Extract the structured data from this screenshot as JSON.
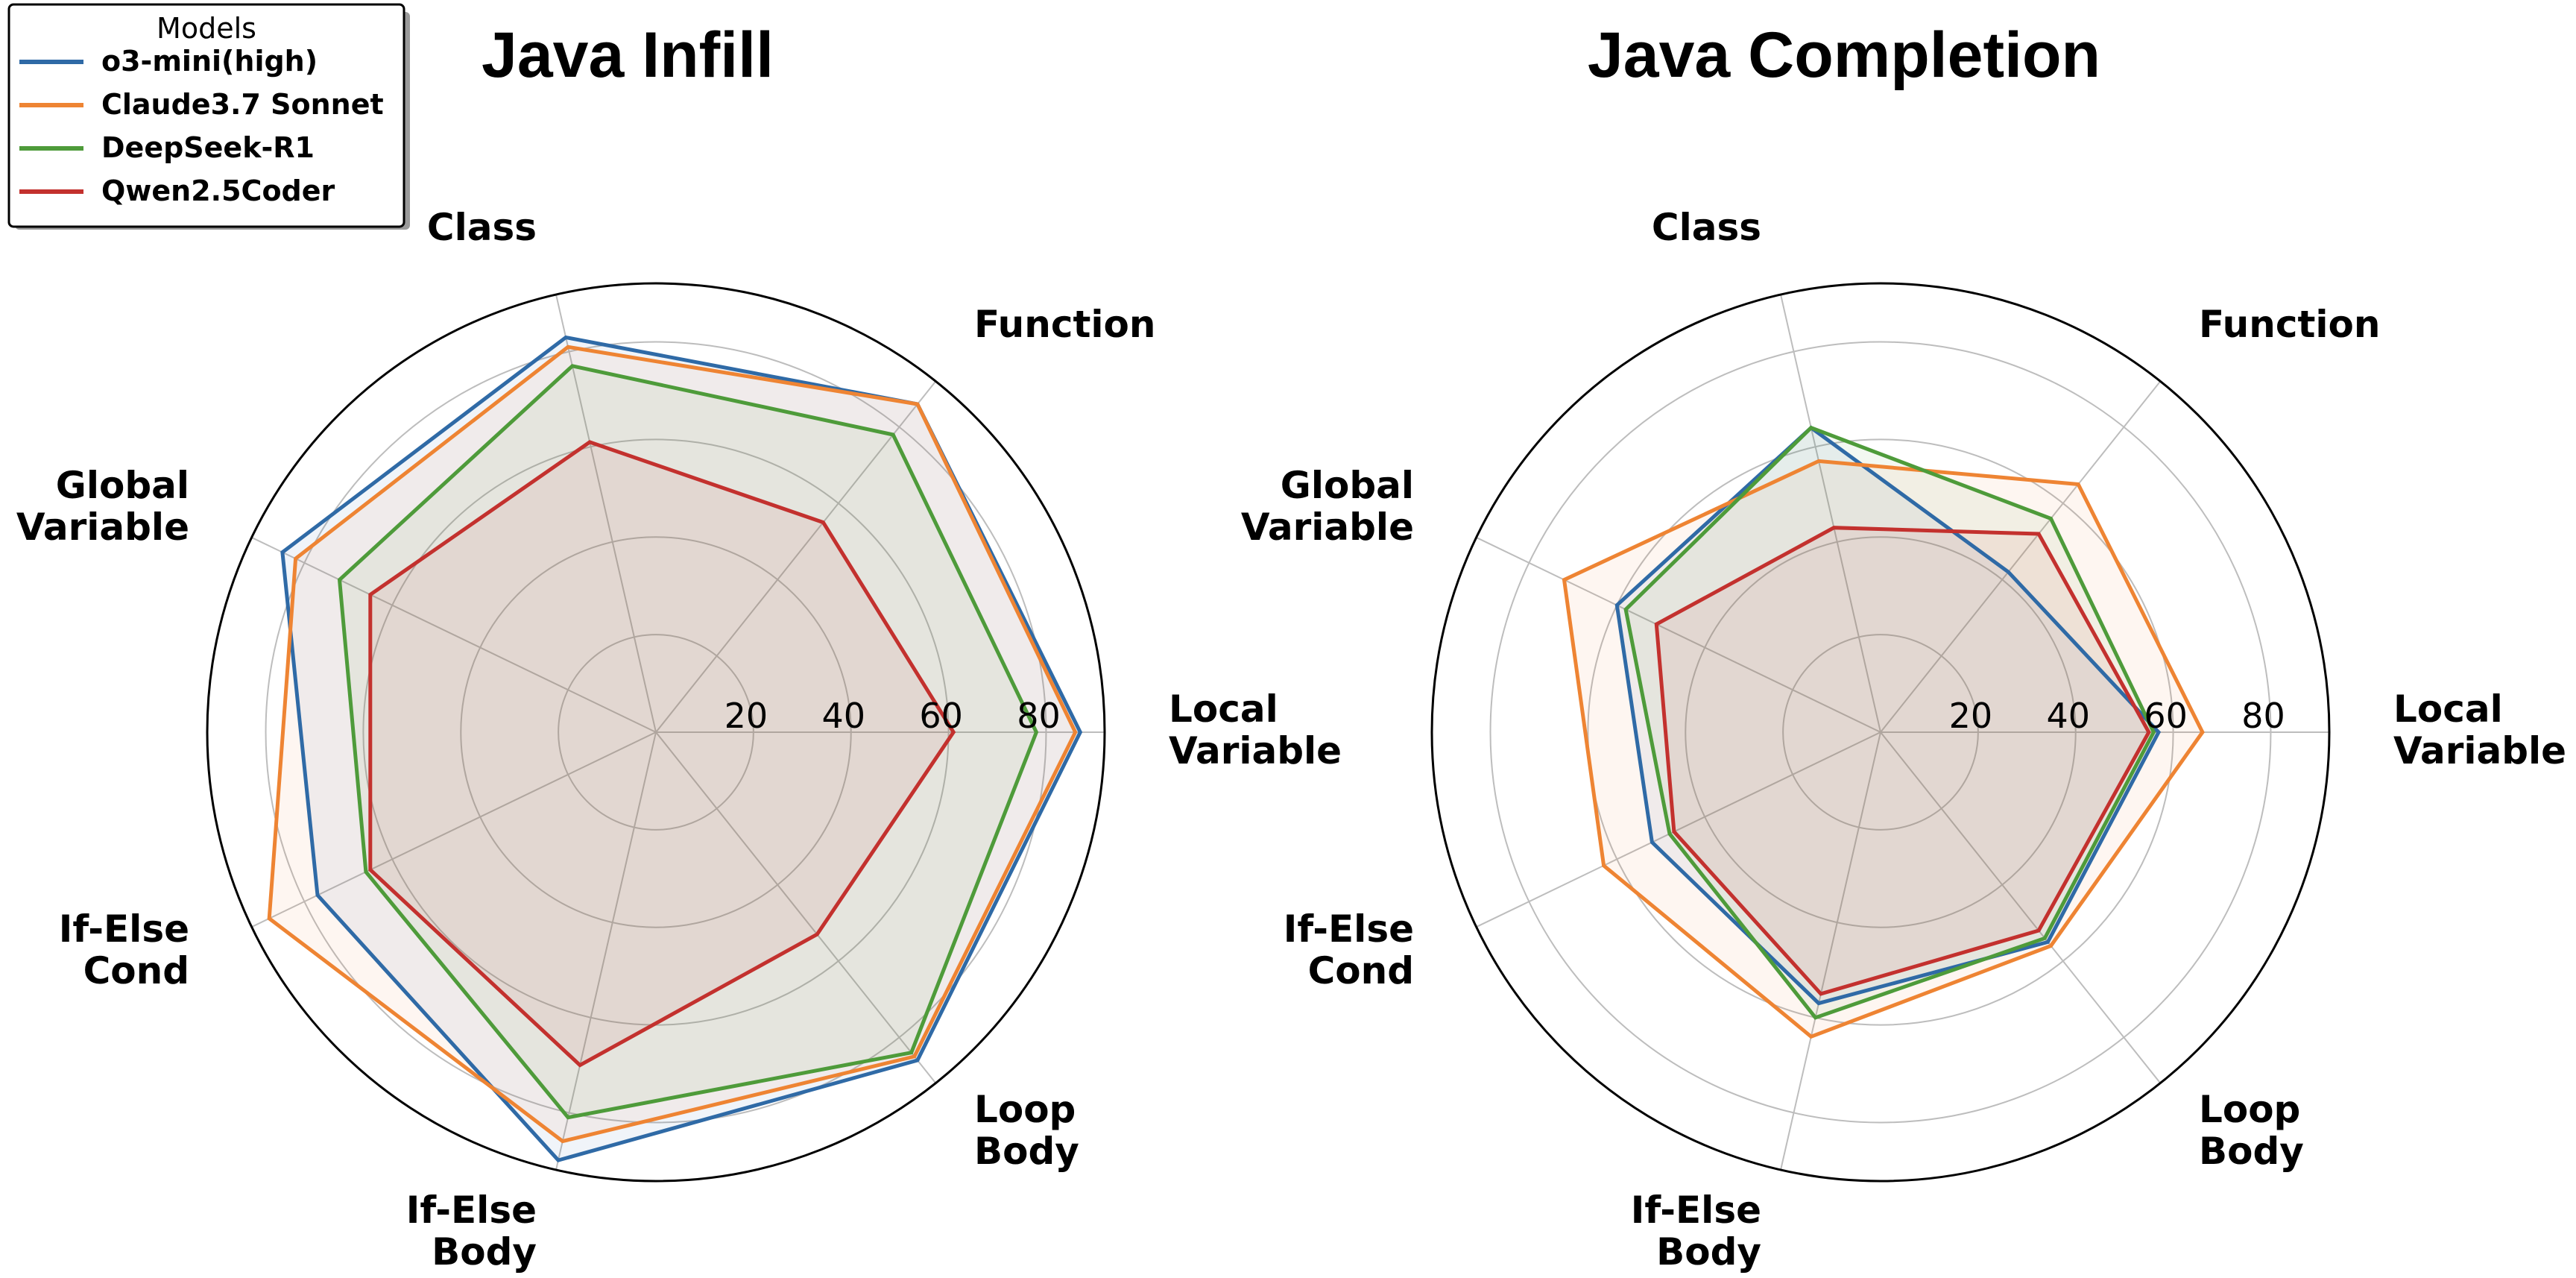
{
  "legend": {
    "title": "Models",
    "placement": "top-left"
  },
  "chart_data": [
    {
      "type": "radar",
      "title": "Java Infill",
      "axes": [
        "Local Variable",
        "Function",
        "Class",
        "Global Variable",
        "If-Else Cond",
        "If-Else Body",
        "Loop Body"
      ],
      "axis_label_lines": [
        [
          "Local",
          "Variable"
        ],
        [
          "Function"
        ],
        [
          "Class"
        ],
        [
          "Global",
          "Variable"
        ],
        [
          "If-Else",
          "Cond"
        ],
        [
          "If-Else",
          "Body"
        ],
        [
          "Loop",
          "Body"
        ]
      ],
      "rlim": [
        0,
        92
      ],
      "rticks": [
        "20",
        "40",
        "60",
        "80"
      ],
      "grid": true,
      "series": [
        {
          "name": "o3-mini(high)",
          "color": "#2f6aa6",
          "values": [
            87,
            86,
            83,
            85,
            77,
            90,
            86
          ]
        },
        {
          "name": "Claude3.7 Sonnet",
          "color": "#ee8433",
          "values": [
            86,
            86,
            81,
            82,
            88,
            86,
            85
          ]
        },
        {
          "name": "DeepSeek-R1",
          "color": "#4e9b3a",
          "values": [
            78,
            78,
            77,
            72,
            66,
            81,
            84
          ]
        },
        {
          "name": "Qwen2.5Coder",
          "color": "#c3312e",
          "values": [
            61,
            55,
            61,
            65,
            65,
            70,
            53
          ]
        }
      ]
    },
    {
      "type": "radar",
      "title": "Java Completion",
      "axes": [
        "Local Variable",
        "Function",
        "Class",
        "Global Variable",
        "If-Else Cond",
        "If-Else Body",
        "Loop Body"
      ],
      "axis_label_lines": [
        [
          "Local",
          "Variable"
        ],
        [
          "Function"
        ],
        [
          "Class"
        ],
        [
          "Global",
          "Variable"
        ],
        [
          "If-Else",
          "Cond"
        ],
        [
          "If-Else",
          "Body"
        ],
        [
          "Loop",
          "Body"
        ]
      ],
      "rlim": [
        0,
        92
      ],
      "rticks": [
        "20",
        "40",
        "60",
        "80"
      ],
      "grid": true,
      "series": [
        {
          "name": "o3-mini(high)",
          "color": "#2f6aa6",
          "values": [
            57,
            42,
            64,
            60,
            52,
            57,
            55
          ]
        },
        {
          "name": "Claude3.7 Sonnet",
          "color": "#ee8433",
          "values": [
            66,
            65,
            57,
            72,
            63,
            64,
            56
          ]
        },
        {
          "name": "DeepSeek-R1",
          "color": "#4e9b3a",
          "values": [
            56,
            56,
            64,
            58,
            48,
            60,
            54
          ]
        },
        {
          "name": "Qwen2.5Coder",
          "color": "#c3312e",
          "values": [
            55,
            52,
            43,
            51,
            47,
            55,
            52
          ]
        }
      ]
    }
  ]
}
